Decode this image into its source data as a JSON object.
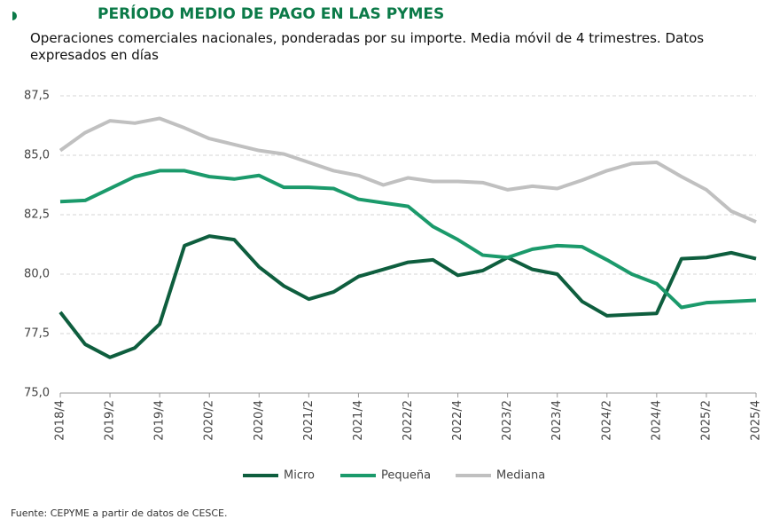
{
  "chart_data": {
    "type": "line",
    "title": "PERÍODO MEDIO DE PAGO EN LAS PYMES",
    "subtitle": "Operaciones comerciales nacionales, ponderadas por su importe. Media móvil de 4 trimestres. Datos expresados en días",
    "source": "Fuente: CEPYME a partir de datos de CESCE.",
    "categories": [
      "2018/4",
      null,
      "2019/2",
      null,
      "2019/4",
      null,
      "2020/2",
      null,
      "2020/4",
      null,
      "2021/2",
      null,
      "2021/4",
      null,
      "2022/2",
      null,
      "2022/4",
      null,
      "2023/2",
      null,
      "2023/4",
      null,
      "2024/2",
      null,
      "2024/4",
      null,
      "2025/2",
      null,
      "2025/4"
    ],
    "series": [
      {
        "name": "Micro",
        "color": "#0e5e3e",
        "values": [
          78.4,
          77.05,
          76.5,
          76.9,
          77.9,
          81.2,
          81.6,
          81.45,
          80.3,
          79.5,
          78.95,
          79.25,
          79.9,
          80.2,
          80.5,
          80.6,
          79.95,
          80.15,
          80.7,
          80.2,
          80.0,
          78.85,
          78.25,
          78.3,
          78.35,
          80.65,
          80.7,
          80.9,
          80.65
        ]
      },
      {
        "name": "Pequeña",
        "color": "#1b9a6b",
        "values": [
          83.05,
          83.1,
          83.6,
          84.1,
          84.35,
          84.35,
          84.1,
          84.0,
          84.15,
          83.65,
          83.65,
          83.6,
          83.15,
          83.0,
          82.85,
          82.0,
          81.45,
          80.8,
          80.7,
          81.05,
          81.2,
          81.15,
          80.6,
          80.0,
          79.6,
          78.6,
          78.8,
          78.85,
          78.9
        ]
      },
      {
        "name": "Mediana",
        "color": "#c0c0c0",
        "values": [
          85.2,
          85.95,
          86.45,
          86.35,
          86.55,
          86.15,
          85.7,
          85.45,
          85.2,
          85.05,
          84.7,
          84.35,
          84.15,
          83.75,
          84.05,
          83.9,
          83.9,
          83.85,
          83.55,
          83.7,
          83.6,
          83.95,
          84.35,
          84.65,
          84.7,
          84.1,
          83.55,
          82.65,
          82.2
        ]
      }
    ],
    "ylim": [
      75,
      87.5
    ],
    "yticks": [
      {
        "value": 75,
        "label": "75,0"
      },
      {
        "value": 77.5,
        "label": "77,5"
      },
      {
        "value": 80,
        "label": "80,0"
      },
      {
        "value": 82.5,
        "label": "82,5"
      },
      {
        "value": 85,
        "label": "85,0"
      },
      {
        "value": 87.5,
        "label": "87,5"
      }
    ],
    "grid": true
  }
}
